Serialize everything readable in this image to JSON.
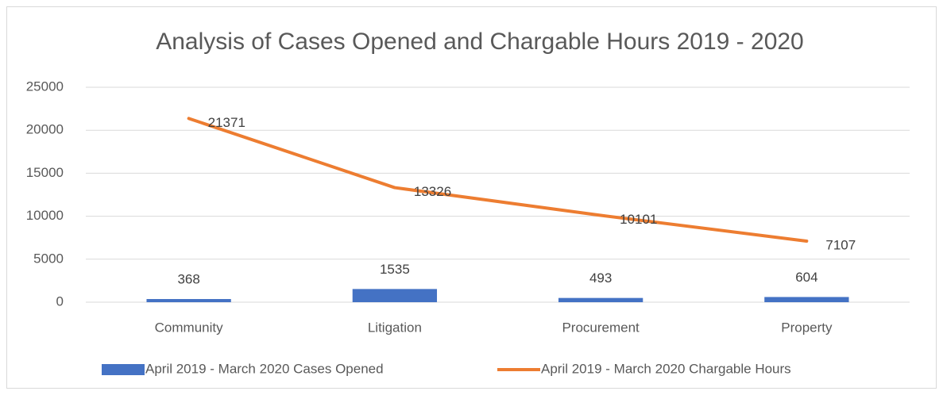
{
  "chart_data": {
    "type": "combo",
    "title": "Analysis of Cases Opened and Chargable Hours 2019 - 2020",
    "categories": [
      "Community",
      "Litigation",
      "Procurement",
      "Property"
    ],
    "series": [
      {
        "name": "April 2019 - March 2020 Cases Opened",
        "type": "bar",
        "color": "#4472c4",
        "values": [
          368,
          1535,
          493,
          604
        ]
      },
      {
        "name": "April 2019 - March 2020 Chargable Hours",
        "type": "line",
        "color": "#ed7d31",
        "values": [
          21371,
          13326,
          10101,
          7107
        ]
      }
    ],
    "ylim": [
      0,
      25000
    ],
    "yticks": [
      0,
      5000,
      10000,
      15000,
      20000,
      25000
    ],
    "grid": true,
    "legend": "bottom"
  }
}
